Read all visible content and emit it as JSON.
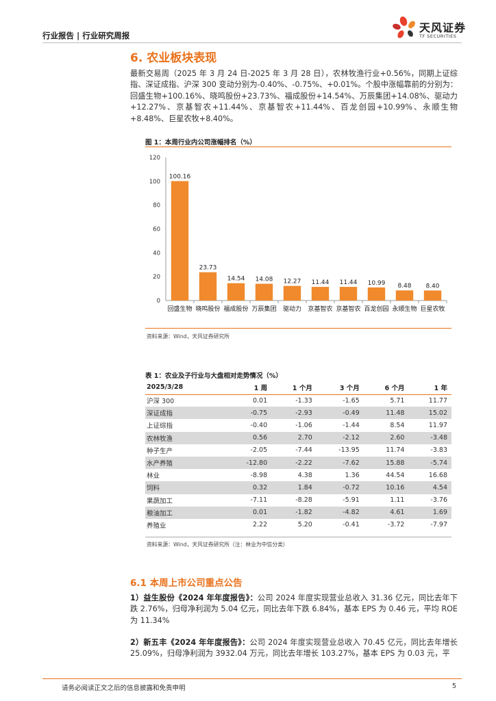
{
  "header": {
    "left": "行业报告 | 行业研究周报",
    "logo_name": "天风证券",
    "logo_sub": "TF SECURITIES",
    "logo_icon": "tf-flower-logo-icon"
  },
  "section": {
    "title": "6. 农业板块表现",
    "para1": "最新交易周（2025 年 3 月 24 日-2025 年 3 月 28 日），农林牧渔行业+0.56%，同期上证综指、深证成指、沪深 300 变动分别为-0.40%、-0.75%、+0.01%。个股中涨幅靠前的分别为：回盛生物+100.16%、晓鸣股份+23.73%、福成股份+14.54%、万辰集团+14.08%、驱动力+12.27%、京基智农+11.44%、京基智农+11.44%、百龙创园+10.99%、永顺生物+8.48%、巨星农牧+8.40%。"
  },
  "figure": {
    "title": "图 1：本周行业内公司涨幅排名（%）",
    "source": "资料来源：Wind，天风证券研究所"
  },
  "chart_data": {
    "type": "bar",
    "title": "图 1：本周行业内公司涨幅排名（%）",
    "categories": [
      "回盛生物",
      "晓鸣股份",
      "福成股份",
      "万辰集团",
      "驱动力",
      "京基智农",
      "京基智农",
      "百龙创园",
      "永顺生物",
      "巨星农牧"
    ],
    "values": [
      100.16,
      23.73,
      14.54,
      14.08,
      12.27,
      11.44,
      11.44,
      10.99,
      8.48,
      8.4
    ],
    "labels": [
      "100.16",
      "23.73",
      "14.54",
      "14.08",
      "12.27",
      "11.44",
      "11.44",
      "10.99",
      "8.48",
      "8.40"
    ],
    "yticks": [
      "0",
      "20",
      "40",
      "60",
      "80",
      "100",
      "120"
    ],
    "ylim": [
      0,
      120
    ],
    "bar_color": "#f08a2c",
    "grid": false
  },
  "table": {
    "title": "表 1：农业及子行业与大盘相对走势情况（%）",
    "headers": [
      "2025/3/28",
      "1 周",
      "1 个月",
      "3 个月",
      "6 个月",
      "1 年"
    ],
    "rows": [
      [
        "沪深 300",
        "0.01",
        "-1.33",
        "-1.65",
        "5.71",
        "11.77"
      ],
      [
        "深证成指",
        "-0.75",
        "-2.93",
        "-0.49",
        "11.48",
        "15.02"
      ],
      [
        "上证综指",
        "-0.40",
        "-1.06",
        "-1.44",
        "8.54",
        "11.97"
      ],
      [
        "农林牧渔",
        "0.56",
        "2.70",
        "-2.12",
        "2.60",
        "-3.48"
      ],
      [
        "种子生产",
        "-2.05",
        "-7.44",
        "-13.95",
        "11.74",
        "-3.83"
      ],
      [
        "水产养殖",
        "-12.80",
        "-2.22",
        "-7.62",
        "15.88",
        "-5.74"
      ],
      [
        "林业",
        "-8.98",
        "4.38",
        "1.36",
        "44.54",
        "16.68"
      ],
      [
        "饲料",
        "0.32",
        "1.84",
        "-0.72",
        "10.16",
        "4.54"
      ],
      [
        "果蔬加工",
        "-7.11",
        "-8.28",
        "-5.91",
        "1.11",
        "-3.76"
      ],
      [
        "粮油加工",
        "0.01",
        "-1.82",
        "-4.82",
        "4.61",
        "1.69"
      ],
      [
        "养殖业",
        "2.22",
        "5.20",
        "-0.41",
        "-3.72",
        "-7.97"
      ]
    ],
    "source": "资料来源：Wind，天风证券研究所（注：林业为中信分类）"
  },
  "subsection": {
    "title": "6.1 本周上市公司重点公告",
    "item1_label": "1）益生股份《2024 年年度报告》：",
    "item1_text": "公司 2024 年度实现营业总收入 31.36 亿元，同比去年下跌 2.76%，归母净利润为 5.04 亿元，同比去年下跌 6.84%，基本 EPS 为 0.46 元，平均 ROE 为 11.34%",
    "item2_label": "2）新五丰《2024 年年度报告》：",
    "item2_text": "公司 2024 年度实现营业总收入 70.45 亿元，同比去年增长 25.09%，归母净利润为 3932.04 万元，同比去年增长 103.27%，基本 EPS 为 0.03 元，平"
  },
  "footer": {
    "disclaimer": "请务必阅读正文之后的信息披露和免责申明",
    "page": "5"
  }
}
